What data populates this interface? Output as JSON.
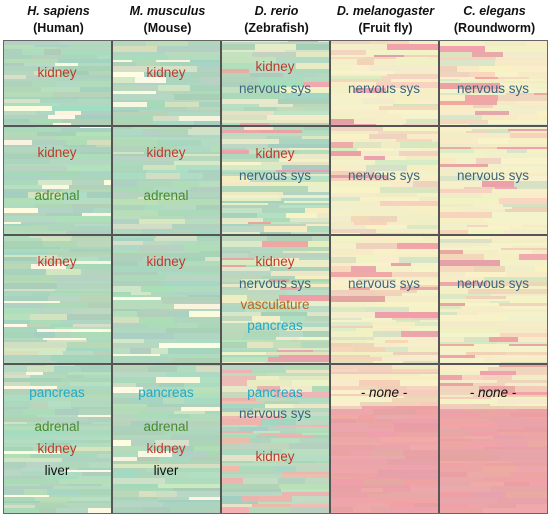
{
  "columns": [
    {
      "species": "H. sapiens",
      "common": "(Human)"
    },
    {
      "species": "M. musculus",
      "common": "(Mouse)"
    },
    {
      "species": "D. rerio",
      "common": "(Zebrafish)"
    },
    {
      "species": "D. melanogaster",
      "common": "(Fruit fly)"
    },
    {
      "species": "C. elegans",
      "common": "(Roundworm)"
    }
  ],
  "label_colors": {
    "kidney": "#c0392b",
    "nervous sys": "#3b6680",
    "adrenal": "#4a8a2e",
    "vasculature": "#b5651d",
    "pancreas": "#1eaac8",
    "liver": "#111111",
    "none": "#111111"
  },
  "heat_colors": {
    "green": "#a8d4bc",
    "pale": "#f5efc8",
    "pink": "#eba5a7"
  },
  "rows": [
    {
      "cells": [
        {
          "labels": [
            "kidney"
          ]
        },
        {
          "labels": [
            "kidney"
          ]
        },
        {
          "labels": [
            "kidney",
            "nervous sys"
          ]
        },
        {
          "labels": [
            "nervous sys"
          ]
        },
        {
          "labels": [
            "nervous sys"
          ]
        }
      ]
    },
    {
      "cells": [
        {
          "labels": [
            "kidney",
            "adrenal"
          ]
        },
        {
          "labels": [
            "kidney",
            "adrenal"
          ]
        },
        {
          "labels": [
            "kidney",
            "nervous sys"
          ]
        },
        {
          "labels": [
            "nervous sys"
          ]
        },
        {
          "labels": [
            "nervous sys"
          ]
        }
      ]
    },
    {
      "cells": [
        {
          "labels": [
            "kidney"
          ]
        },
        {
          "labels": [
            "kidney"
          ]
        },
        {
          "labels": [
            "kidney",
            "nervous sys",
            "vasculature",
            "pancreas"
          ]
        },
        {
          "labels": [
            "nervous sys"
          ]
        },
        {
          "labels": [
            "nervous sys"
          ]
        }
      ]
    },
    {
      "cells": [
        {
          "labels": [
            "pancreas",
            "adrenal",
            "kidney",
            "liver"
          ]
        },
        {
          "labels": [
            "pancreas",
            "adrenal",
            "kidney",
            "liver"
          ]
        },
        {
          "labels": [
            "pancreas",
            "nervous sys",
            "kidney"
          ]
        },
        {
          "labels": [
            "- none -"
          ]
        },
        {
          "labels": [
            "- none -"
          ]
        }
      ]
    }
  ]
}
